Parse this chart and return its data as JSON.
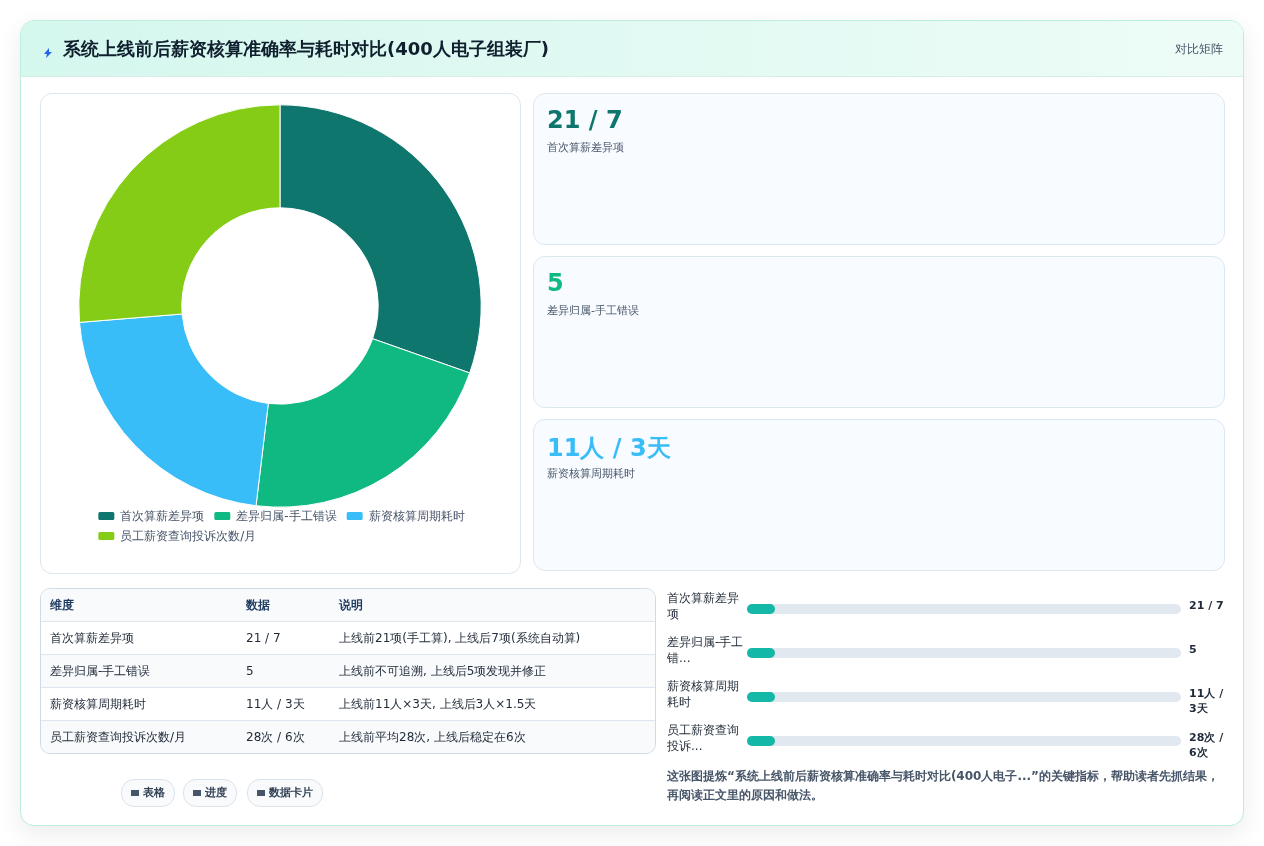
{
  "chart_data": [
    {
      "type": "other",
      "title": "系统上线前后薪资核算准确率与耗时对比(400人电子组装厂)",
      "annotations": [
        "对比矩阵"
      ]
    },
    {
      "type": "donut",
      "categories": [
        "首次算薪差异项",
        "差异归属-手工错误",
        "薪资核算周期耗时",
        "员工薪资查询投诉次数/月"
      ],
      "values": [
        30.4,
        21.5,
        21.8,
        26.3
      ],
      "colors": [
        "#0f766e",
        "#10b981",
        "#38bdf8",
        "#84cc16"
      ],
      "legend": "bottom"
    },
    {
      "type": "other",
      "annotations": [
        "21 / 7",
        "首次算薪差异项",
        "5",
        "差异归属-手工错误",
        "11人 / 3天",
        "薪资核算周期耗时"
      ],
      "colors": [
        "#0f766e",
        "#10b981",
        "#38bdf8"
      ]
    },
    {
      "type": "other",
      "annotations": [
        "维度",
        "数据",
        "说明",
        "首次算薪差异项",
        "21 / 7",
        "上线前21项(手工算), 上线后7项(系统自动算)",
        "差异归属-手工错误",
        "5",
        "上线前不可追溯, 上线后5项发现并修正",
        "薪资核算周期耗时",
        "11人 / 3天",
        "上线前11人×3天, 上线后3人×1.5天",
        "员工薪资查询投诉次数/月",
        "28次 / 6次",
        "上线前平均28次, 上线后稳定在6次"
      ]
    },
    {
      "type": "other",
      "annotations": [
        "首次算薪差异项",
        "21 / 7",
        "差异归属-手工错...",
        "5",
        "薪资核算周期耗时",
        "11人 / 3天",
        "员工薪资查询投诉...",
        "28次 / 6次"
      ]
    },
    {
      "type": "other",
      "annotations": [
        "表格",
        "进度",
        "数据卡片",
        "这张图提炼“系统上线前后薪资核算准确率与耗时对比(400人电子...”的关键指标，帮助读者先抓结果，再阅读正文里的原因和做法。"
      ]
    }
  ]
}
